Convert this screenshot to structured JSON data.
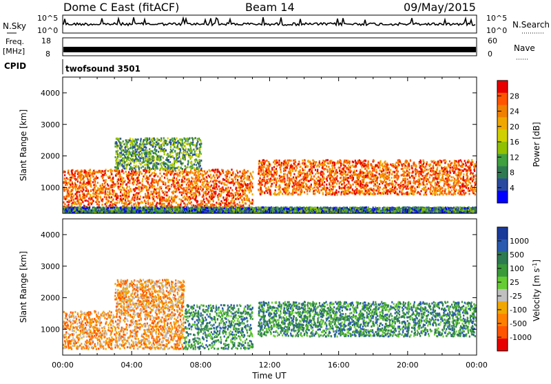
{
  "header": {
    "station_title": "Dome C East (fitACF)",
    "beam": "Beam 14",
    "date": "09/May/2015"
  },
  "status_panels": {
    "nsky_label": "N.Sky",
    "nsky_ticks": [
      "10^5",
      "10^0"
    ],
    "nsearch_label": "N.Search",
    "nsearch_ticks": [
      "10^5",
      "10^0"
    ],
    "freq_label": "Freq.",
    "freq_unit": "[MHz]",
    "freq_ticks": [
      "18",
      "8"
    ],
    "nave_label": "Nave",
    "nave_ticks": [
      "60",
      "0"
    ],
    "cpid_label": "CPID",
    "cpid_value": "twofsound 3501"
  },
  "chart_data": [
    {
      "type": "heatmap",
      "name": "power",
      "ylabel": "Slant Range [km]",
      "xlabel": "",
      "ylim": [
        180,
        4500
      ],
      "yticks": [
        "4000",
        "3000",
        "2000",
        "1000"
      ],
      "ytick_values": [
        4000,
        3000,
        2000,
        1000
      ],
      "xlim_hours": [
        0,
        24
      ],
      "colorbar": {
        "label": "Power [dB]",
        "ticks": [
          "28",
          "24",
          "20",
          "16",
          "12",
          "8",
          "4"
        ],
        "colors": [
          "#e80000",
          "#ff5500",
          "#f08000",
          "#f0a800",
          "#d0d000",
          "#90c000",
          "#40a040",
          "#2e7a50",
          "#2a4aa0",
          "#0000ff"
        ]
      },
      "echo_regions": [
        {
          "t_start": 0.0,
          "t_end": 11.0,
          "range_min": 400,
          "range_max": 1600,
          "level": "high"
        },
        {
          "t_start": 3.0,
          "t_end": 8.0,
          "range_min": 1600,
          "range_max": 2600,
          "level": "mid"
        },
        {
          "t_start": 11.3,
          "t_end": 24.0,
          "range_min": 800,
          "range_max": 1900,
          "level": "high"
        },
        {
          "t_start": 0.0,
          "t_end": 24.0,
          "range_min": 200,
          "range_max": 400,
          "level": "low"
        }
      ]
    },
    {
      "type": "heatmap",
      "name": "velocity",
      "ylabel": "Slant Range [km]",
      "xlabel": "Time UT",
      "ylim": [
        180,
        4500
      ],
      "yticks": [
        "4000",
        "3000",
        "2000",
        "1000"
      ],
      "ytick_values": [
        4000,
        3000,
        2000,
        1000
      ],
      "xticks": [
        "00:00",
        "04:00",
        "08:00",
        "12:00",
        "16:00",
        "20:00",
        "00:00"
      ],
      "xtick_hours": [
        0,
        4,
        8,
        12,
        16,
        20,
        24
      ],
      "xlim_hours": [
        0,
        24
      ],
      "colorbar": {
        "label": "Velocity [m s",
        "label_sup": "-1",
        "label_end": "]",
        "ticks": [
          "1000",
          "500",
          "100",
          "25",
          "-25",
          "-100",
          "-500",
          "-1000"
        ],
        "colors": [
          "#1a3a9a",
          "#2a5ab0",
          "#2e7a50",
          "#3a9a3a",
          "#66cc33",
          "#c0c0c0",
          "#f0a800",
          "#ff8000",
          "#ff5500",
          "#e80000"
        ]
      },
      "echo_regions": [
        {
          "t_start": 0.0,
          "t_end": 7.0,
          "range_min": 400,
          "range_max": 1600,
          "level": "away"
        },
        {
          "t_start": 7.0,
          "t_end": 11.0,
          "range_min": 400,
          "range_max": 1800,
          "level": "toward"
        },
        {
          "t_start": 3.0,
          "t_end": 7.0,
          "range_min": 1600,
          "range_max": 2600,
          "level": "away"
        },
        {
          "t_start": 11.3,
          "t_end": 24.0,
          "range_min": 800,
          "range_max": 1900,
          "level": "toward"
        }
      ]
    }
  ]
}
